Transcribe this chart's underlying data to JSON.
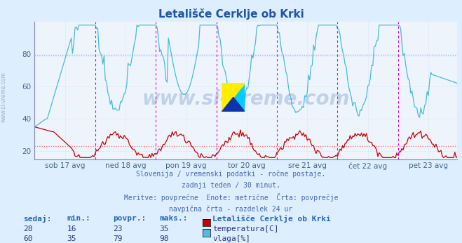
{
  "title": "Letališče Cerklje ob Krki",
  "background_color": "#ddeeff",
  "plot_bg_color": "#eef4fc",
  "grid_color": "#c8d8e8",
  "grid_color2": "#c8c8d8",
  "x_labels": [
    "sob 17 avg",
    "ned 18 avg",
    "pon 19 avg",
    "tor 20 avg",
    "sre 21 avg",
    "čet 22 avg",
    "pet 23 avg"
  ],
  "ylim": [
    15,
    100
  ],
  "yticks": [
    20,
    40,
    60,
    80
  ],
  "vline_color": "#dd00dd",
  "temp_color": "#cc0000",
  "vlaga_color": "#44bbdd",
  "temp_avg_line": 23,
  "vlaga_avg_line": 79,
  "temp_avg_color": "#ff6666",
  "vlaga_avg_color": "#66aaff",
  "subtitle_lines": [
    "Slovenija / vremenski podatki - ročne postaje.",
    "zadnji teden / 30 minut.",
    "Meritve: povprečne  Enote: metrične  Črta: povprečje",
    "navpična črta - razdelek 24 ur"
  ],
  "table_header": [
    "sedaj:",
    "min.:",
    "povpr.:",
    "maks.:"
  ],
  "table_label": "Letališče Cerklje ob Krki",
  "table_data": [
    [
      28,
      16,
      23,
      35
    ],
    [
      60,
      35,
      79,
      98
    ]
  ],
  "series_labels": [
    "temperatura[C]",
    "vlaga[%]"
  ],
  "series_colors": [
    "#cc0000",
    "#55bbdd"
  ],
  "watermark": "www.si-vreme.com",
  "n_points": 336,
  "pts_per_day": 48
}
